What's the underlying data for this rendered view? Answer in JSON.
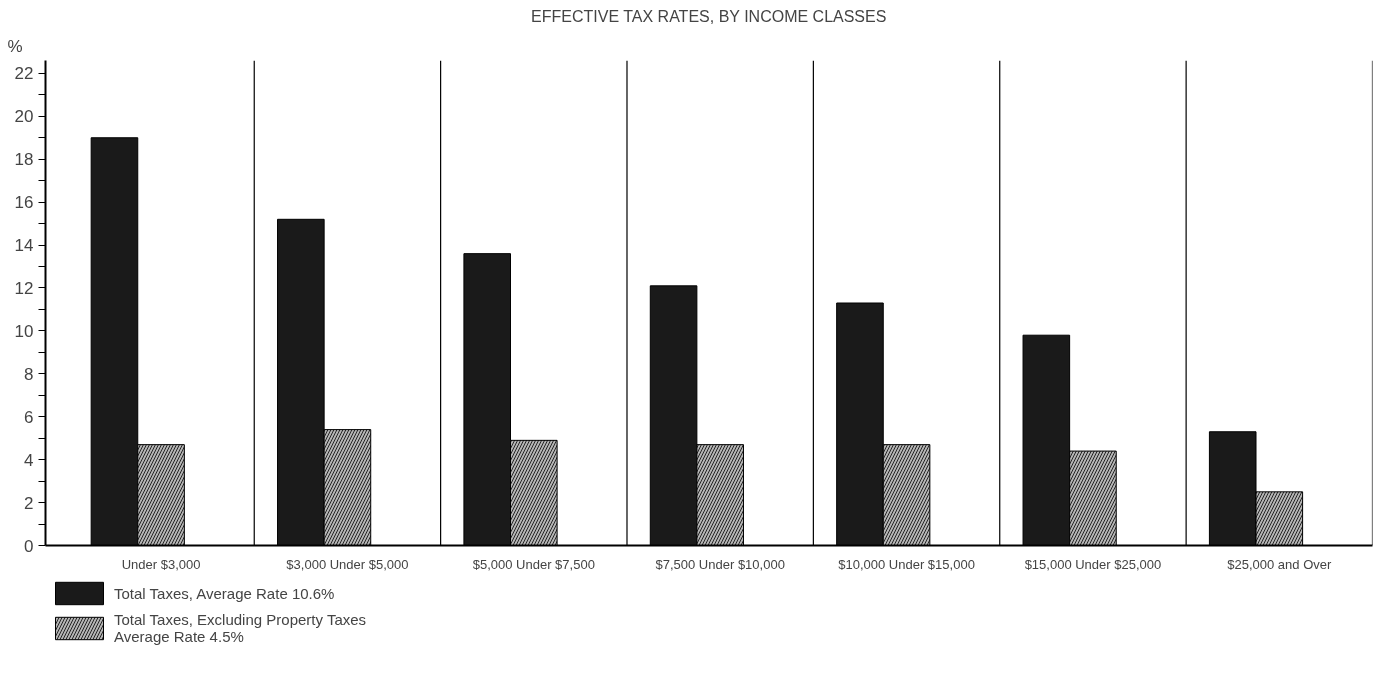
{
  "chart_data": {
    "type": "bar",
    "title": "EFFECTIVE TAX RATES, BY INCOME CLASSES",
    "ylabel": "%",
    "categories": [
      "Under $3,000",
      "$3,000 Under $5,000",
      "$5,000 Under $7,500",
      "$7,500 Under $10,000",
      "$10,000 Under $15,000",
      "$15,000 Under $25,000",
      "$25,000 and Over"
    ],
    "series": [
      {
        "name": "Total Taxes, Average Rate 10.6%",
        "color": "#1a1a1a",
        "values": [
          19.0,
          15.2,
          13.6,
          12.1,
          11.3,
          9.8,
          5.3
        ]
      },
      {
        "name": "Total Taxes, Excluding Property Taxes\nAverage Rate 4.5%",
        "color": "#b5b5b5",
        "values": [
          4.7,
          5.4,
          4.9,
          4.7,
          4.7,
          4.4,
          2.5
        ]
      }
    ],
    "ylim": [
      0,
      22.6
    ],
    "yticks": [
      0,
      {
        "value": 1,
        "label": null
      },
      2,
      {
        "value": 3,
        "label": null
      },
      4,
      {
        "value": 5,
        "label": null
      },
      6,
      {
        "value": 7,
        "label": null
      },
      8,
      {
        "value": 9,
        "label": null
      },
      10,
      {
        "value": 11,
        "label": null
      },
      12,
      {
        "value": 13,
        "label": null
      },
      14,
      {
        "value": 15,
        "label": null
      },
      16,
      {
        "value": 17,
        "label": null
      },
      18,
      {
        "value": 19,
        "label": null
      },
      20,
      {
        "value": 21,
        "label": null
      },
      22
    ],
    "grid": "x",
    "legend": "bottom"
  }
}
